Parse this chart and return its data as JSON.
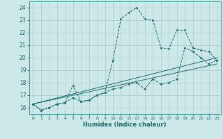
{
  "xlabel": "Humidex (Indice chaleur)",
  "xlim": [
    -0.5,
    23.5
  ],
  "ylim": [
    15.5,
    24.5
  ],
  "yticks": [
    16,
    17,
    18,
    19,
    20,
    21,
    22,
    23,
    24
  ],
  "xticks": [
    0,
    1,
    2,
    3,
    4,
    5,
    6,
    7,
    8,
    9,
    10,
    11,
    12,
    13,
    14,
    15,
    16,
    17,
    18,
    19,
    20,
    21,
    22,
    23
  ],
  "bg_color": "#cce8e8",
  "grid_color": "#aacccc",
  "line_color": "#1a6b6b",
  "lines": [
    {
      "x": [
        0,
        1,
        2,
        3,
        4,
        5,
        6,
        7,
        8,
        9,
        10,
        11,
        12,
        13,
        14,
        15,
        16,
        17,
        18,
        19,
        20,
        21,
        22,
        23
      ],
      "y": [
        16.3,
        15.8,
        16.0,
        16.3,
        16.4,
        17.8,
        16.5,
        16.6,
        17.0,
        17.2,
        19.8,
        23.1,
        23.6,
        24.0,
        23.1,
        23.0,
        20.8,
        20.7,
        22.2,
        22.2,
        20.8,
        20.6,
        20.5,
        19.8
      ],
      "style": "dashed",
      "marker": true
    },
    {
      "x": [
        0,
        1,
        2,
        3,
        4,
        5,
        6,
        7,
        8,
        9,
        10,
        11,
        12,
        13,
        14,
        15,
        16,
        17,
        18,
        19,
        20,
        21,
        22,
        23
      ],
      "y": [
        16.3,
        15.8,
        16.0,
        16.3,
        16.4,
        16.8,
        16.5,
        16.6,
        17.0,
        17.2,
        17.5,
        17.6,
        17.9,
        18.0,
        17.5,
        18.3,
        17.9,
        18.0,
        18.3,
        20.8,
        20.5,
        20.0,
        19.5,
        19.8
      ],
      "style": "dashed",
      "marker": true
    },
    {
      "x": [
        0,
        23
      ],
      "y": [
        16.3,
        20.0
      ],
      "style": "solid",
      "marker": false
    },
    {
      "x": [
        0,
        23
      ],
      "y": [
        16.3,
        19.5
      ],
      "style": "solid",
      "marker": false
    }
  ]
}
